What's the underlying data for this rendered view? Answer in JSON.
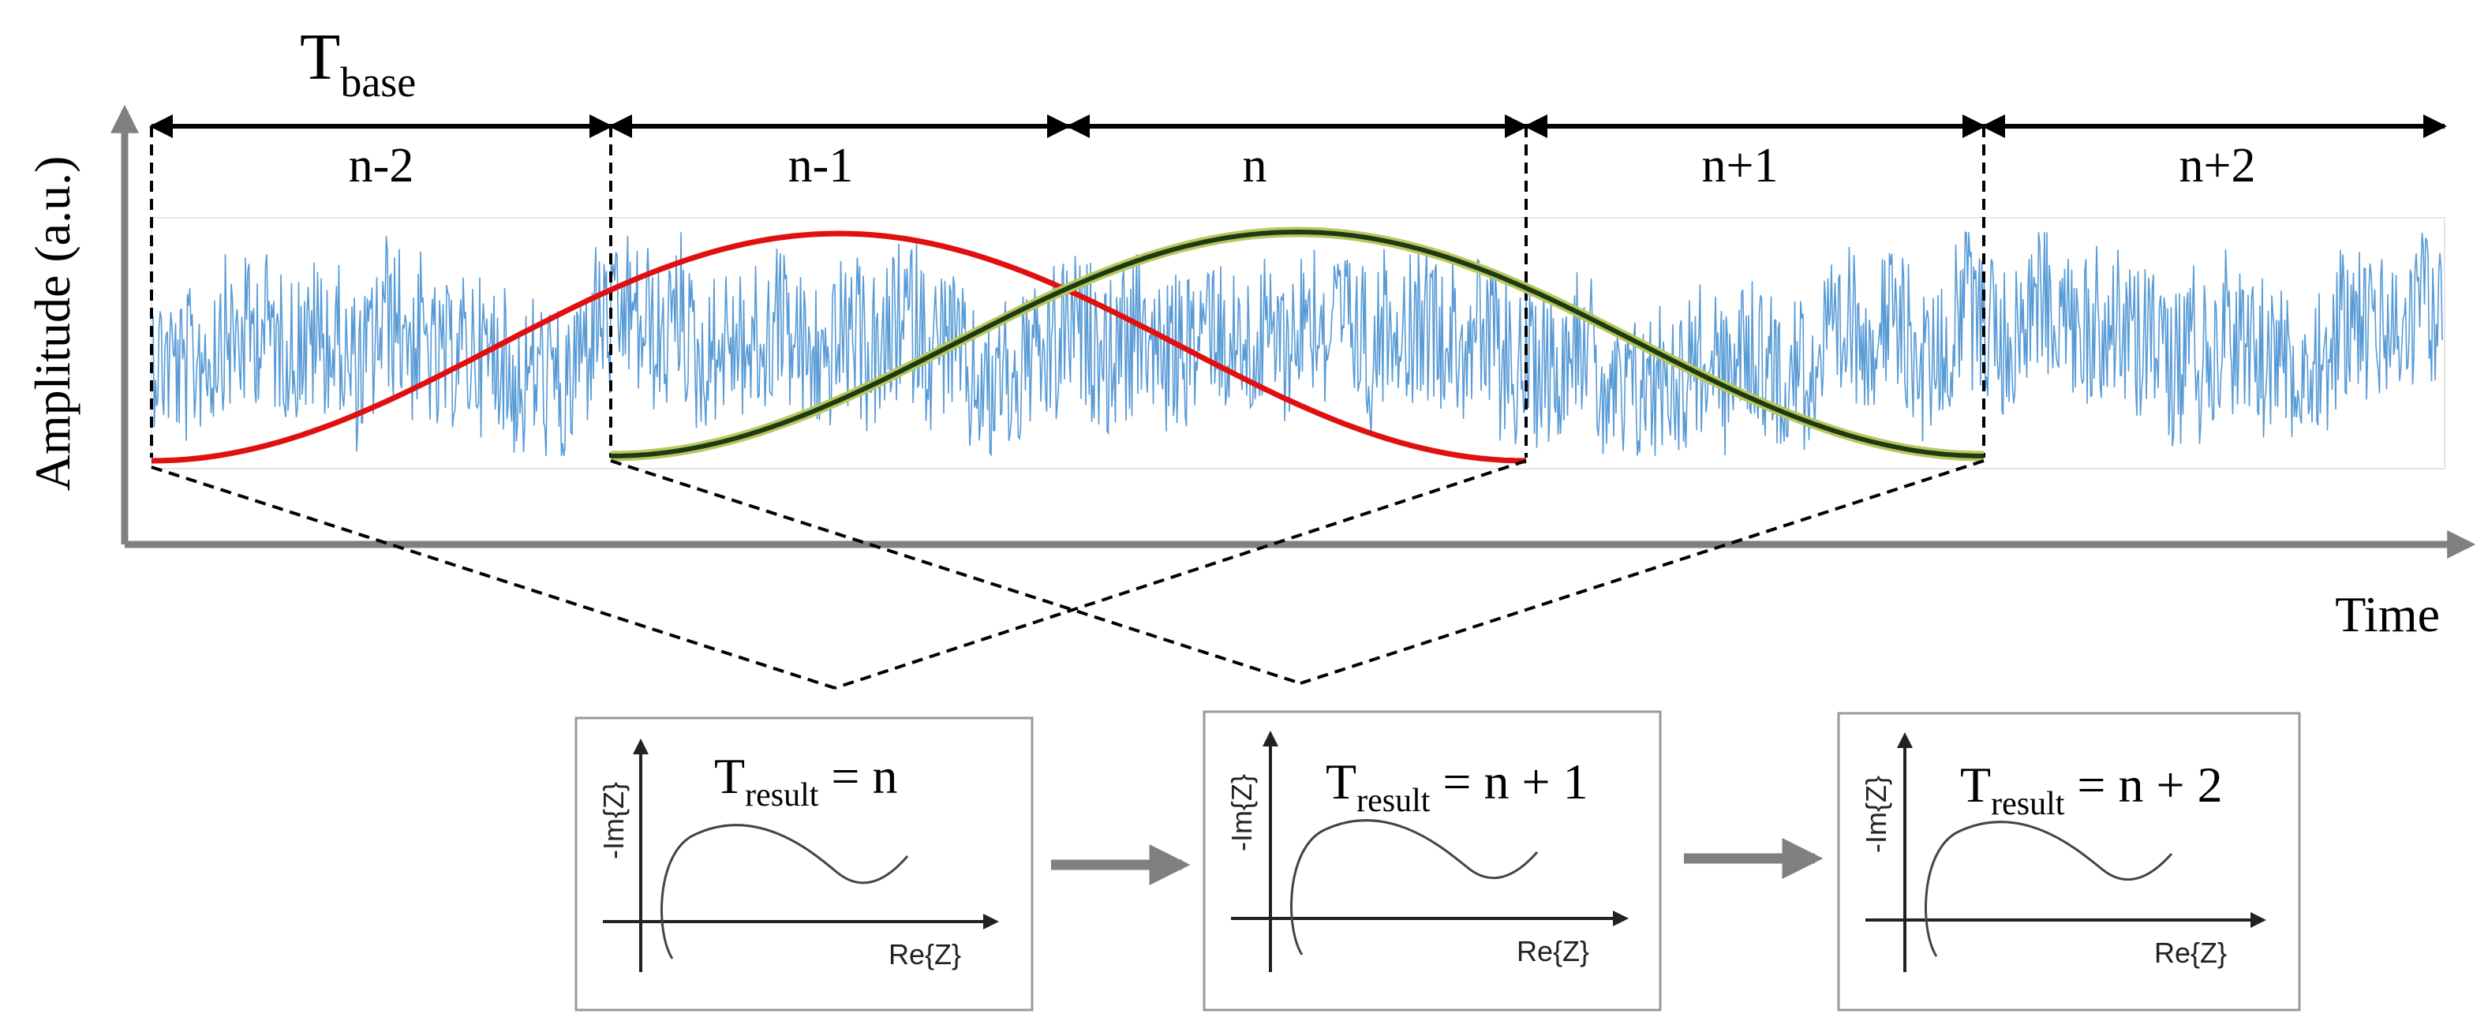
{
  "axes": {
    "y_label": "Amplitude (a.u.)",
    "x_label": "Time"
  },
  "t_base": {
    "main": "T",
    "sub": "base"
  },
  "segments": [
    "n-2",
    "n-1",
    "n",
    "n+1",
    "n+2"
  ],
  "colors": {
    "signal": "#1f78c8",
    "window_red": "#e01010",
    "window_green": "#1e3a10",
    "window_green_glow": "#b8c860",
    "axis": "#808080",
    "frame": "#999999"
  },
  "panels": [
    {
      "t_main": "T",
      "t_sub": "result",
      "eq": " = n",
      "y_axis": "-Im{Z}",
      "x_axis": "Re{Z}"
    },
    {
      "t_main": "T",
      "t_sub": "result",
      "eq": " = n + 1",
      "y_axis": "-Im{Z}",
      "x_axis": "Re{Z}"
    },
    {
      "t_main": "T",
      "t_sub": "result",
      "eq": " = n + 2",
      "y_axis": "-Im{Z}",
      "x_axis": "Re{Z}"
    }
  ]
}
